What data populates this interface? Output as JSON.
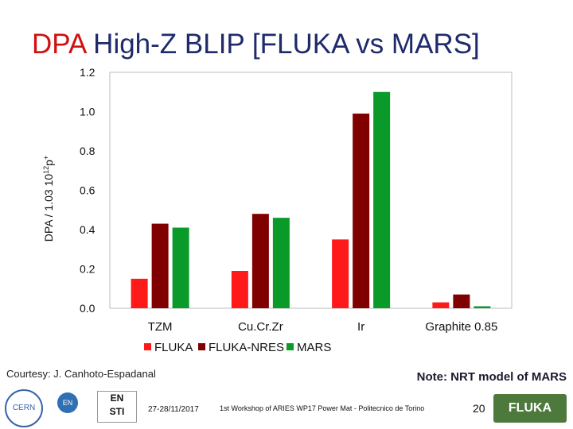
{
  "slide": {
    "title_accent": "DPA",
    "title_rest": " High-Z BLIP [FLUKA vs MARS]",
    "courtesy": "Courtesy: J. Canhoto-Espadanal",
    "note": "Note: NRT model of MARS",
    "footer": {
      "date": "27-28/11/2017",
      "workshop": "1st Workshop of ARIES WP17 Power Mat - Politecnico de Torino",
      "page": "20",
      "logo_cern": "CERN",
      "logo_en": "EN",
      "logo_ensti_top": "EN",
      "logo_ensti_bottom": "STI",
      "logo_fluka": "FLUKA"
    }
  },
  "colors": {
    "FLUKA": "#ff1a1a",
    "FLUKA-NRES": "#800000",
    "MARS": "#0a9a2a",
    "title_accent": "#d01010",
    "title": "#1f2a6b"
  },
  "chart_data": {
    "type": "bar",
    "title": "",
    "ylabel": "DPA / 1.03 10^12 p+",
    "xlabel": "",
    "ylim": [
      0,
      1.2
    ],
    "yticks": [
      "0.0",
      "0.2",
      "0.4",
      "0.6",
      "0.8",
      "1.0",
      "1.2"
    ],
    "categories": [
      "TZM",
      "Cu.Cr.Zr",
      "Ir",
      "Graphite 0.85"
    ],
    "series": [
      {
        "name": "FLUKA",
        "values": [
          0.15,
          0.19,
          0.35,
          0.03
        ]
      },
      {
        "name": "FLUKA-NRES",
        "values": [
          0.43,
          0.48,
          0.99,
          0.07
        ]
      },
      {
        "name": "MARS",
        "values": [
          0.41,
          0.46,
          1.1,
          0.01
        ]
      }
    ],
    "legend_position": "bottom",
    "grid": false
  }
}
